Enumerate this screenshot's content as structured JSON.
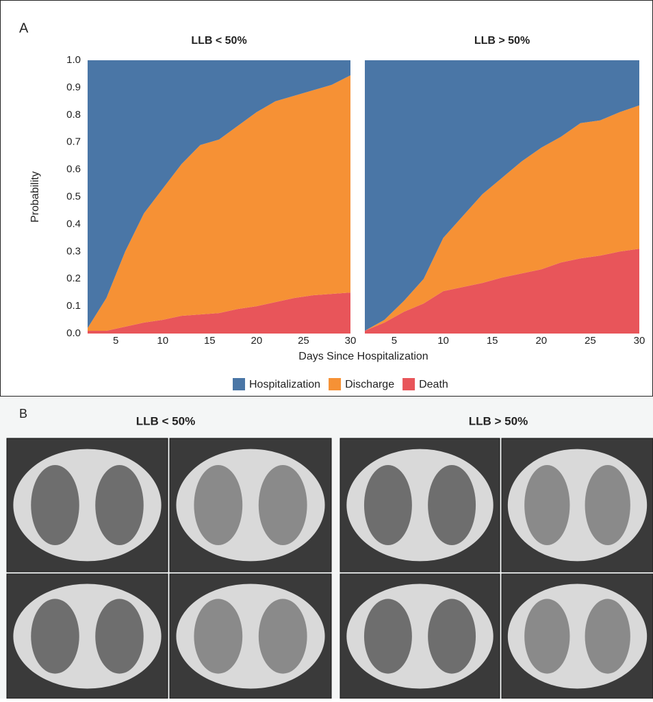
{
  "panel_labels": [
    "A",
    "B"
  ],
  "image_panel": {
    "titles": [
      "LLB < 50%",
      "LLB > 50%"
    ]
  },
  "chart_data": [
    {
      "type": "stacked_area",
      "title": "LLB < 50%",
      "x_label": "Days Since Hospitalization",
      "y_label": "Probability",
      "x": [
        2,
        4,
        6,
        8,
        10,
        12,
        14,
        16,
        18,
        20,
        22,
        24,
        26,
        28,
        30
      ],
      "series": [
        {
          "name": "Hospitalization",
          "color": "#4a76a6",
          "values": [
            0.98,
            0.87,
            0.7,
            0.56,
            0.47,
            0.38,
            0.31,
            0.29,
            0.24,
            0.19,
            0.15,
            0.13,
            0.11,
            0.09,
            0.055
          ]
        },
        {
          "name": "Discharge",
          "color": "#f69135",
          "values": [
            0.01,
            0.12,
            0.275,
            0.4,
            0.48,
            0.555,
            0.62,
            0.635,
            0.67,
            0.71,
            0.735,
            0.74,
            0.75,
            0.765,
            0.795
          ]
        },
        {
          "name": "Death",
          "color": "#e8555a",
          "values": [
            0.01,
            0.01,
            0.025,
            0.04,
            0.05,
            0.065,
            0.07,
            0.075,
            0.09,
            0.1,
            0.115,
            0.13,
            0.14,
            0.145,
            0.15
          ]
        }
      ],
      "xlim": [
        2,
        30
      ],
      "xticks": [
        5,
        10,
        15,
        20,
        25,
        30
      ],
      "ylim": [
        0,
        1
      ],
      "yticks": [
        {
          "value": 0,
          "label": "0.0"
        },
        0.1,
        0.2,
        0.3,
        0.4,
        0.5,
        0.6,
        0.7,
        0.8,
        0.9,
        {
          "value": 1,
          "label": "1.0"
        }
      ],
      "legend": "bottom"
    },
    {
      "type": "stacked_area",
      "title": "LLB > 50%",
      "x": [
        2,
        4,
        6,
        8,
        10,
        12,
        14,
        16,
        18,
        20,
        22,
        24,
        26,
        28,
        30
      ],
      "series": [
        {
          "color": "#4a76a6",
          "values": [
            0.99,
            0.95,
            0.88,
            0.8,
            0.65,
            0.57,
            0.49,
            0.43,
            0.37,
            0.32,
            0.28,
            0.23,
            0.22,
            0.19,
            0.165
          ]
        },
        {
          "color": "#f69135",
          "values": [
            0,
            0.01,
            0.04,
            0.09,
            0.195,
            0.26,
            0.325,
            0.365,
            0.41,
            0.445,
            0.46,
            0.495,
            0.495,
            0.51,
            0.525
          ]
        },
        {
          "color": "#e8555a",
          "values": [
            0.01,
            0.04,
            0.08,
            0.11,
            0.155,
            0.17,
            0.185,
            0.205,
            0.22,
            0.235,
            0.26,
            0.275,
            0.285,
            0.3,
            0.31
          ]
        }
      ],
      "xlim": [
        2,
        30
      ],
      "xticks": [
        5,
        10,
        15,
        20,
        25,
        30
      ],
      "ylim": [
        0,
        1
      ]
    }
  ]
}
